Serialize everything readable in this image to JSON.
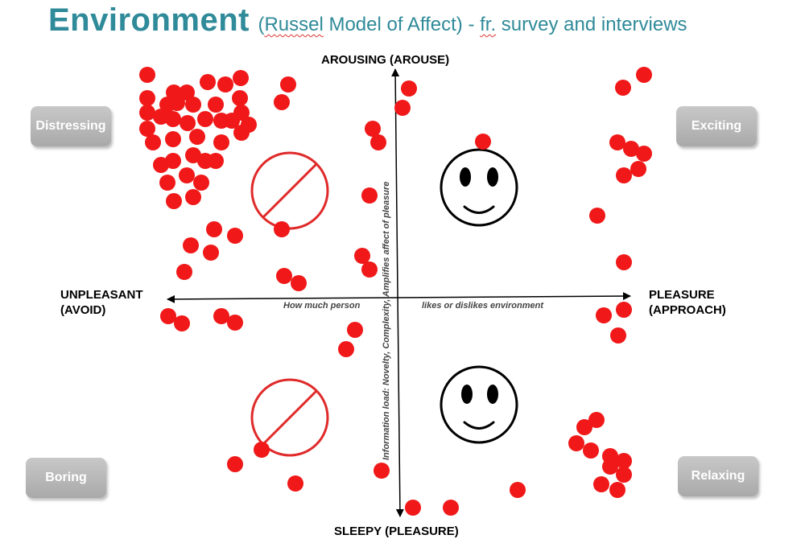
{
  "title": {
    "main": "Environment",
    "open": "(",
    "russel": "Russel",
    "middle": " Model of Affect) - ",
    "fr": "fr.",
    "rest": " survey and interviews"
  },
  "axes": {
    "top": "AROUSING (AROUSE)",
    "bottom": "SLEEPY (PLEASURE)",
    "left_line1": "UNPLEASANT",
    "left_line2": "(AVOID)",
    "right_line1": "PLEASURE",
    "right_line2": "(APPROACH)",
    "h_note_left": "How much person",
    "h_note_right": "likes or dislikes environment",
    "v_note": "Information load: Novelty, Complexity, Amplifies affect of pleasure"
  },
  "quadrants": {
    "top_left": "Distressing",
    "top_right": "Exciting",
    "bottom_left": "Boring",
    "bottom_right": "Relaxing"
  },
  "colors": {
    "dot": "#f01818",
    "title": "#2f8a99",
    "button": "#b5b5b5"
  },
  "icons": [
    "prohibit-icon",
    "smiley-icon"
  ]
}
